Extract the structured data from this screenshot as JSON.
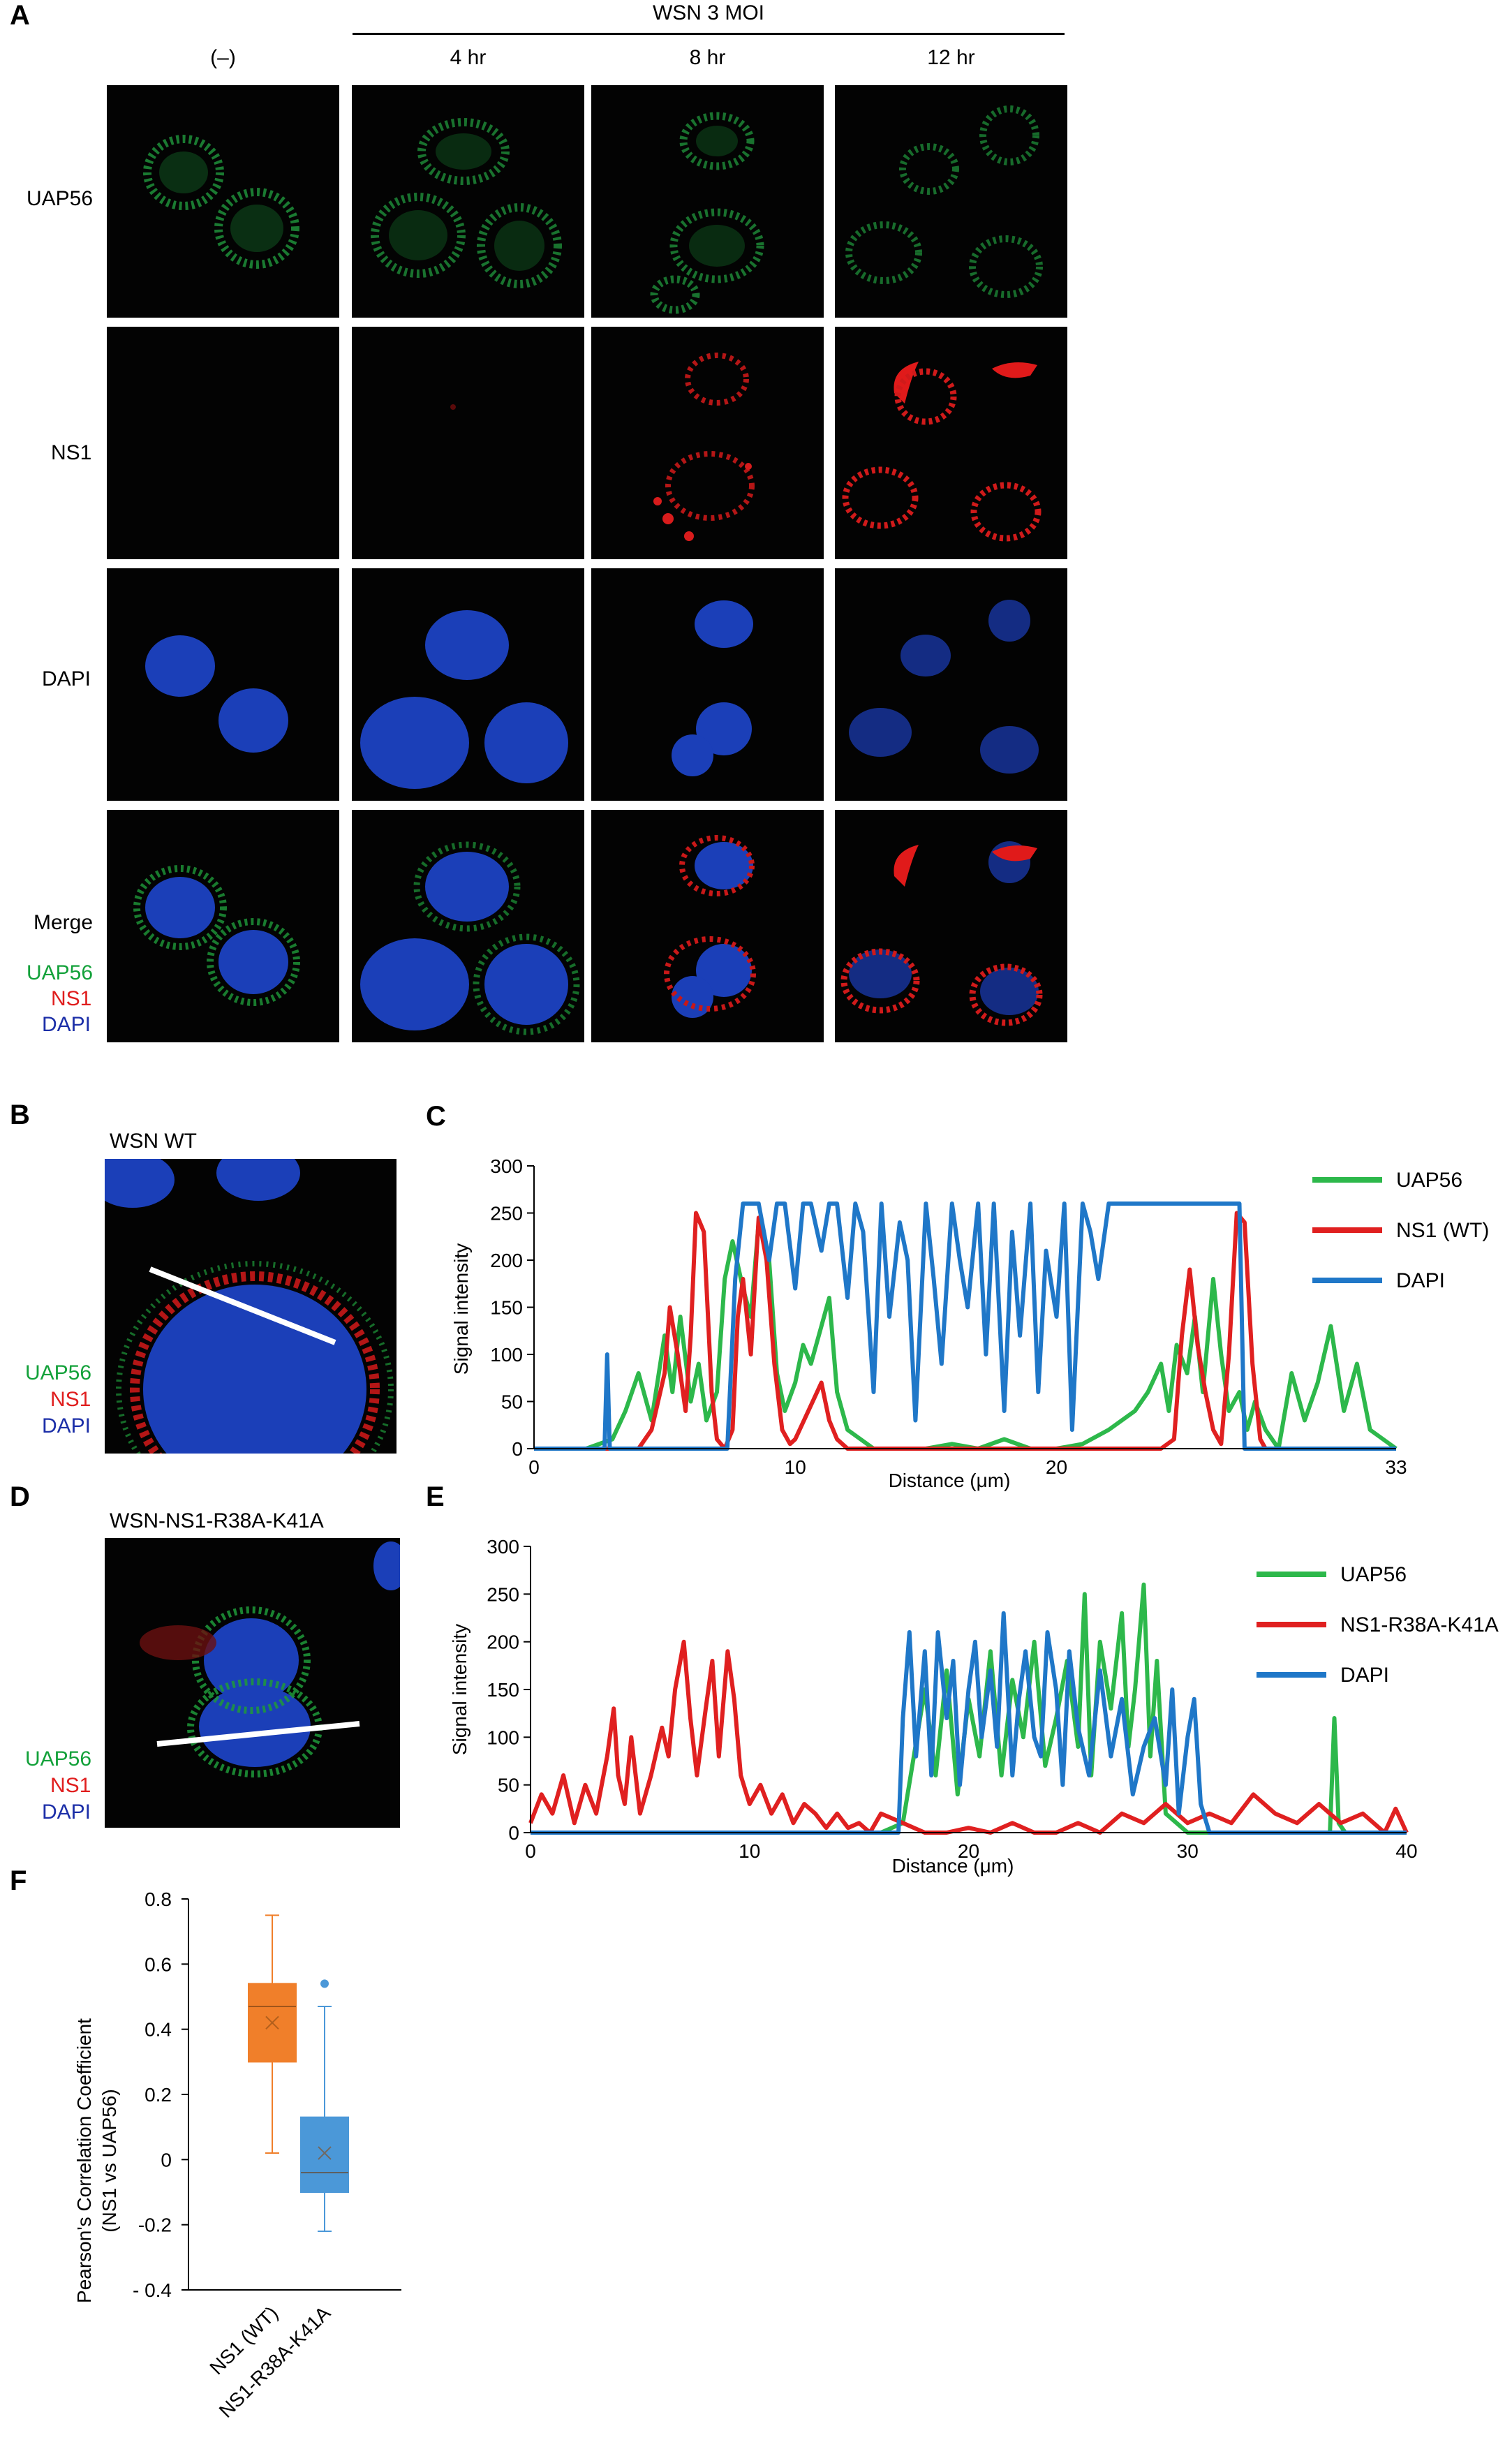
{
  "panel_a": {
    "label": "A",
    "treatment_header": "WSN  3 MOI",
    "columns": [
      "(–)",
      "4 hr",
      "8 hr",
      "12 hr"
    ],
    "rows": [
      "UAP56",
      "NS1",
      "DAPI",
      "Merge"
    ],
    "merge_legend": [
      "UAP56",
      "NS1",
      "DAPI"
    ]
  },
  "panel_b": {
    "label": "B",
    "title": "WSN  WT",
    "legend": [
      "UAP56",
      "NS1",
      "DAPI"
    ]
  },
  "panel_d": {
    "label": "D",
    "title": "WSN-NS1-R38A-K41A",
    "legend": [
      "UAP56",
      "NS1",
      "DAPI"
    ]
  },
  "colors": {
    "uap56": "#2db84b",
    "ns1": "#e02020",
    "dapi": "#1f77c8",
    "wt_box": "#f07f2a",
    "mut_box": "#4b98d8",
    "legend_uap56": "#13a13a",
    "legend_ns1": "#e01e1e",
    "legend_dapi": "#1c2fa8"
  },
  "chart_data": [
    {
      "id": "C",
      "panel_label": "C",
      "type": "line",
      "xlabel": "Distance (μm)",
      "ylabel": "Signal intensity",
      "xlim": [
        0,
        33
      ],
      "ylim": [
        0,
        300
      ],
      "xticks": [
        "0",
        "10",
        "20",
        "33"
      ],
      "xtick_values": [
        0,
        10,
        20,
        33
      ],
      "yticks": [
        "0",
        "50",
        "100",
        "150",
        "200",
        "250",
        "300"
      ],
      "ytick_values": [
        0,
        50,
        100,
        150,
        200,
        250,
        300
      ],
      "legend_position": "right",
      "series": [
        {
          "name": "UAP56",
          "color": "#2db84b",
          "x": [
            0,
            2,
            3,
            3.5,
            4,
            4.5,
            5,
            5.3,
            5.6,
            6,
            6.3,
            6.6,
            7,
            7.3,
            7.6,
            8,
            8.3,
            8.6,
            9,
            9.3,
            9.6,
            10,
            10.3,
            10.6,
            11,
            11.3,
            11.6,
            12,
            12.5,
            13,
            14,
            15,
            16,
            17,
            18,
            19,
            20,
            21,
            22,
            23,
            23.5,
            24,
            24.3,
            24.6,
            25,
            25.3,
            25.6,
            26,
            26.3,
            26.6,
            27,
            27.3,
            27.6,
            28,
            28.5,
            29,
            29.5,
            30,
            30.5,
            31,
            31.5,
            32,
            32.5,
            33
          ],
          "y": [
            0,
            0,
            10,
            40,
            80,
            30,
            120,
            60,
            140,
            50,
            90,
            30,
            60,
            180,
            220,
            170,
            140,
            240,
            200,
            80,
            40,
            70,
            110,
            90,
            130,
            160,
            60,
            20,
            10,
            0,
            0,
            0,
            5,
            0,
            10,
            0,
            0,
            5,
            20,
            40,
            60,
            90,
            40,
            110,
            80,
            140,
            60,
            180,
            100,
            40,
            60,
            20,
            50,
            20,
            0,
            80,
            30,
            70,
            130,
            40,
            90,
            20,
            10,
            0
          ]
        },
        {
          "name": "NS1 (WT)",
          "color": "#e02020",
          "x": [
            0,
            4,
            4.5,
            5,
            5.2,
            5.5,
            5.8,
            6,
            6.2,
            6.5,
            6.8,
            7,
            7.3,
            7.6,
            7.8,
            8,
            8.3,
            8.6,
            8.9,
            9.2,
            9.5,
            9.8,
            10,
            10.5,
            11,
            11.3,
            11.6,
            12,
            14,
            16,
            18,
            20,
            22,
            24,
            24.5,
            24.8,
            25.1,
            25.4,
            25.7,
            26,
            26.3,
            26.6,
            26.9,
            27.2,
            27.5,
            27.8,
            28,
            28.5,
            33
          ],
          "y": [
            0,
            0,
            20,
            80,
            150,
            100,
            40,
            120,
            250,
            230,
            60,
            10,
            0,
            20,
            140,
            180,
            100,
            245,
            200,
            90,
            20,
            5,
            10,
            40,
            70,
            30,
            10,
            0,
            0,
            0,
            0,
            0,
            0,
            0,
            10,
            120,
            190,
            110,
            60,
            20,
            5,
            100,
            250,
            240,
            90,
            10,
            0,
            0,
            0
          ]
        },
        {
          "name": "DAPI",
          "color": "#1f77c8",
          "x": [
            0,
            2.7,
            2.8,
            2.9,
            3.2,
            3.4,
            3.6,
            4,
            4.3,
            4.6,
            5,
            5.3,
            5.6,
            6,
            6.5,
            7,
            7.4,
            7.7,
            8,
            8.3,
            8.6,
            9,
            9.3,
            9.6,
            10,
            10.3,
            10.6,
            11,
            11.3,
            11.6,
            12,
            12.3,
            12.6,
            13,
            13.3,
            13.6,
            14,
            14.3,
            14.6,
            15,
            15.3,
            15.6,
            16,
            16.3,
            16.6,
            17,
            17.3,
            17.6,
            18,
            18.3,
            18.6,
            19,
            19.3,
            19.6,
            20,
            20.3,
            20.6,
            21,
            21.3,
            21.6,
            22,
            22.5,
            23,
            23.5,
            24,
            24.5,
            25,
            25.5,
            26,
            26.5,
            26.8,
            27,
            27.2,
            27.4,
            27.6,
            33
          ],
          "y": [
            0,
            0,
            100,
            0,
            0,
            0,
            0,
            0,
            0,
            0,
            0,
            0,
            0,
            0,
            0,
            0,
            0,
            180,
            260,
            260,
            260,
            200,
            260,
            260,
            170,
            260,
            260,
            210,
            260,
            260,
            160,
            260,
            230,
            60,
            260,
            140,
            240,
            200,
            30,
            260,
            180,
            90,
            260,
            200,
            150,
            260,
            100,
            260,
            40,
            230,
            120,
            260,
            60,
            210,
            140,
            260,
            20,
            260,
            230,
            180,
            260,
            260,
            260,
            260,
            260,
            260,
            260,
            260,
            260,
            260,
            260,
            260,
            0,
            0,
            0,
            0
          ]
        }
      ]
    },
    {
      "id": "E",
      "panel_label": "E",
      "type": "line",
      "xlabel": "Distance (μm)",
      "ylabel": "Signal intensity",
      "xlim": [
        0,
        40
      ],
      "ylim": [
        0,
        300
      ],
      "xticks": [
        "0",
        "10",
        "20",
        "30",
        "40"
      ],
      "xtick_values": [
        0,
        10,
        20,
        30,
        40
      ],
      "yticks": [
        "0",
        "50",
        "100",
        "150",
        "200",
        "250",
        "300"
      ],
      "ytick_values": [
        0,
        50,
        100,
        150,
        200,
        250,
        300
      ],
      "legend_position": "right",
      "series": [
        {
          "name": "UAP56",
          "color": "#2db84b",
          "x": [
            0,
            16,
            17,
            17.5,
            18,
            18.5,
            19,
            19.5,
            20,
            20.5,
            21,
            21.5,
            22,
            22.5,
            23,
            23.5,
            24,
            24.5,
            25,
            25.3,
            25.6,
            26,
            26.5,
            27,
            27.3,
            27.6,
            28,
            28.3,
            28.6,
            29,
            29.5,
            30,
            30.5,
            31,
            36.5,
            36.7,
            36.9,
            37.2,
            40
          ],
          "y": [
            0,
            0,
            10,
            80,
            150,
            60,
            170,
            40,
            140,
            80,
            190,
            60,
            160,
            100,
            200,
            70,
            120,
            180,
            90,
            250,
            60,
            200,
            130,
            230,
            90,
            150,
            260,
            80,
            180,
            20,
            10,
            0,
            0,
            0,
            0,
            120,
            10,
            0,
            0
          ]
        },
        {
          "name": "NS1-R38A-K41A",
          "color": "#e02020",
          "x": [
            0,
            0.5,
            1,
            1.5,
            2,
            2.5,
            3,
            3.5,
            3.8,
            4,
            4.3,
            4.6,
            5,
            5.5,
            6,
            6.3,
            6.6,
            7,
            7.3,
            7.6,
            8,
            8.3,
            8.6,
            9,
            9.3,
            9.6,
            10,
            10.5,
            11,
            11.5,
            12,
            12.5,
            13,
            13.5,
            14,
            14.5,
            15,
            15.5,
            16,
            17,
            18,
            19,
            20,
            21,
            22,
            23,
            24,
            25,
            26,
            27,
            28,
            29,
            30,
            31,
            32,
            33,
            34,
            35,
            36,
            37,
            38,
            39,
            39.5,
            40
          ],
          "y": [
            10,
            40,
            20,
            60,
            10,
            50,
            20,
            80,
            130,
            60,
            30,
            100,
            20,
            60,
            110,
            80,
            150,
            200,
            120,
            60,
            130,
            180,
            80,
            190,
            140,
            60,
            30,
            50,
            20,
            40,
            10,
            30,
            20,
            5,
            20,
            5,
            10,
            0,
            20,
            10,
            0,
            0,
            5,
            0,
            10,
            0,
            0,
            10,
            0,
            20,
            10,
            30,
            10,
            20,
            10,
            40,
            20,
            10,
            30,
            10,
            20,
            0,
            25,
            0
          ]
        },
        {
          "name": "DAPI",
          "color": "#1f77c8",
          "x": [
            0,
            16.8,
            17,
            17.3,
            17.6,
            18,
            18.3,
            18.6,
            19,
            19.3,
            19.6,
            20,
            20.3,
            20.6,
            21,
            21.3,
            21.6,
            22,
            22.3,
            22.6,
            23,
            23.3,
            23.6,
            24,
            24.3,
            24.6,
            25,
            25.5,
            26,
            26.5,
            27,
            27.5,
            28,
            28.5,
            29,
            29.3,
            29.6,
            30,
            30.3,
            30.6,
            31,
            40
          ],
          "y": [
            0,
            0,
            120,
            210,
            80,
            190,
            60,
            210,
            120,
            180,
            50,
            150,
            200,
            100,
            170,
            90,
            230,
            60,
            140,
            190,
            100,
            80,
            210,
            150,
            50,
            190,
            110,
            60,
            170,
            80,
            140,
            40,
            90,
            120,
            50,
            150,
            20,
            100,
            140,
            30,
            0,
            0
          ]
        }
      ]
    },
    {
      "id": "F",
      "panel_label": "F",
      "type": "box",
      "ylabel_line1": "Pearson's Correlation Coefficient",
      "ylabel_line2": "(NS1 vs UAP56)",
      "ylim": [
        -0.4,
        0.8
      ],
      "yticks": [
        "- 0.4",
        "-0.2",
        "0",
        "0.2",
        "0.4",
        "0.6",
        "0.8"
      ],
      "ytick_values": [
        -0.4,
        -0.2,
        0,
        0.2,
        0.4,
        0.6,
        0.8
      ],
      "categories": [
        "NS1 (WT)",
        "NS1-R38A-K41A"
      ],
      "boxes": [
        {
          "category": "NS1 (WT)",
          "color": "#f07f2a",
          "min": 0.02,
          "q1": 0.3,
          "median": 0.47,
          "q3": 0.54,
          "max": 0.75,
          "mean": 0.42,
          "outliers": []
        },
        {
          "category": "NS1-R38A-K41A",
          "color": "#4b98d8",
          "min": -0.22,
          "q1": -0.1,
          "median": -0.04,
          "q3": 0.13,
          "max": 0.47,
          "mean": 0.02,
          "outliers": [
            0.54
          ]
        }
      ]
    }
  ]
}
